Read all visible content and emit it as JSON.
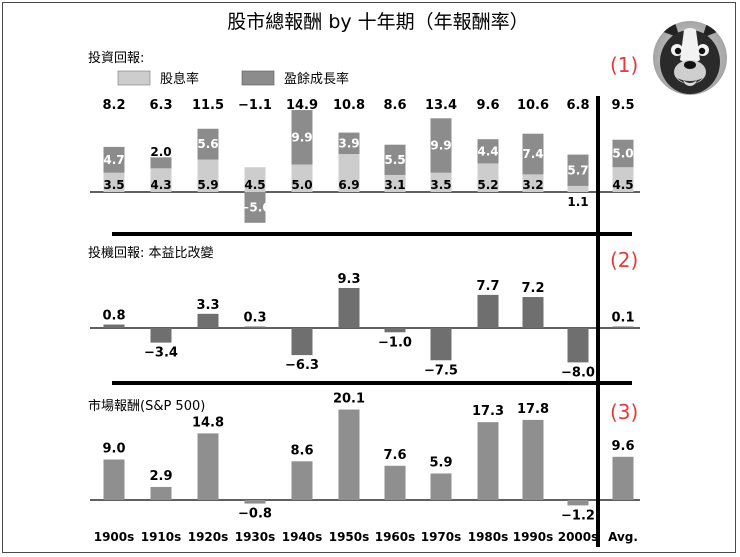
{
  "title": "股市總報酬 by 十年期（年報酬率）",
  "colors": {
    "dividend": "#cdcdcd",
    "earnings": "#8c8c8c",
    "spec": "#6f6f6f",
    "market": "#8f8f8f",
    "axis": "#000000",
    "marker": "#e53a3a"
  },
  "chart_data": [
    {
      "type": "bar",
      "panel_label": "投資回報:",
      "marker": "(1)",
      "stacked": true,
      "legend": [
        "股息率",
        "盈餘成長率"
      ],
      "categories": [
        "1900s",
        "1910s",
        "1920s",
        "1930s",
        "1940s",
        "1950s",
        "1960s",
        "1970s",
        "1980s",
        "1990s",
        "2000s",
        "Avg."
      ],
      "totals": [
        "8.2",
        "6.3",
        "11.5",
        "−1.1",
        "14.9",
        "10.8",
        "8.6",
        "13.4",
        "9.6",
        "10.6",
        "6.8",
        "9.5"
      ],
      "series": [
        {
          "name": "股息率",
          "values": [
            3.5,
            4.3,
            5.9,
            4.5,
            5.0,
            6.9,
            3.1,
            3.5,
            5.2,
            3.2,
            1.1,
            4.5
          ],
          "labels": [
            "3.5",
            "4.3",
            "5.9",
            "4.5",
            "5.0",
            "6.9",
            "3.1",
            "3.5",
            "5.2",
            "3.2",
            "1.1",
            "4.5"
          ]
        },
        {
          "name": "盈餘成長率",
          "values": [
            4.7,
            2.0,
            5.6,
            -5.6,
            9.9,
            3.9,
            5.5,
            9.9,
            4.4,
            7.4,
            5.7,
            5.0
          ],
          "labels": [
            "4.7",
            "2.0",
            "5.6",
            "−5.6",
            "9.9",
            "3.9",
            "5.5",
            "9.9",
            "4.4",
            "7.4",
            "5.7",
            "5.0"
          ]
        }
      ]
    },
    {
      "type": "bar",
      "panel_label": "投機回報: 本益比改變",
      "marker": "(2)",
      "categories": [
        "1900s",
        "1910s",
        "1920s",
        "1930s",
        "1940s",
        "1950s",
        "1960s",
        "1970s",
        "1980s",
        "1990s",
        "2000s",
        "Avg."
      ],
      "values": [
        0.8,
        -3.4,
        3.3,
        0.3,
        -6.3,
        9.3,
        -1.0,
        -7.5,
        7.7,
        7.2,
        -8.0,
        0.1
      ],
      "labels": [
        "0.8",
        "−3.4",
        "3.3",
        "0.3",
        "−6.3",
        "9.3",
        "−1.0",
        "−7.5",
        "7.7",
        "7.2",
        "−8.0",
        "0.1"
      ]
    },
    {
      "type": "bar",
      "panel_label": "市場報酬(S&P 500)",
      "marker": "(3)",
      "categories": [
        "1900s",
        "1910s",
        "1920s",
        "1930s",
        "1940s",
        "1950s",
        "1960s",
        "1970s",
        "1980s",
        "1990s",
        "2000s",
        "Avg."
      ],
      "values": [
        9.0,
        2.9,
        14.8,
        -0.8,
        8.6,
        20.1,
        7.6,
        5.9,
        17.3,
        17.8,
        -1.2,
        9.6
      ],
      "labels": [
        "9.0",
        "2.9",
        "14.8",
        "−0.8",
        "8.6",
        "20.1",
        "7.6",
        "5.9",
        "17.3",
        "17.8",
        "−1.2",
        "9.6"
      ]
    }
  ],
  "avatar": {
    "alt": "bulldog"
  }
}
